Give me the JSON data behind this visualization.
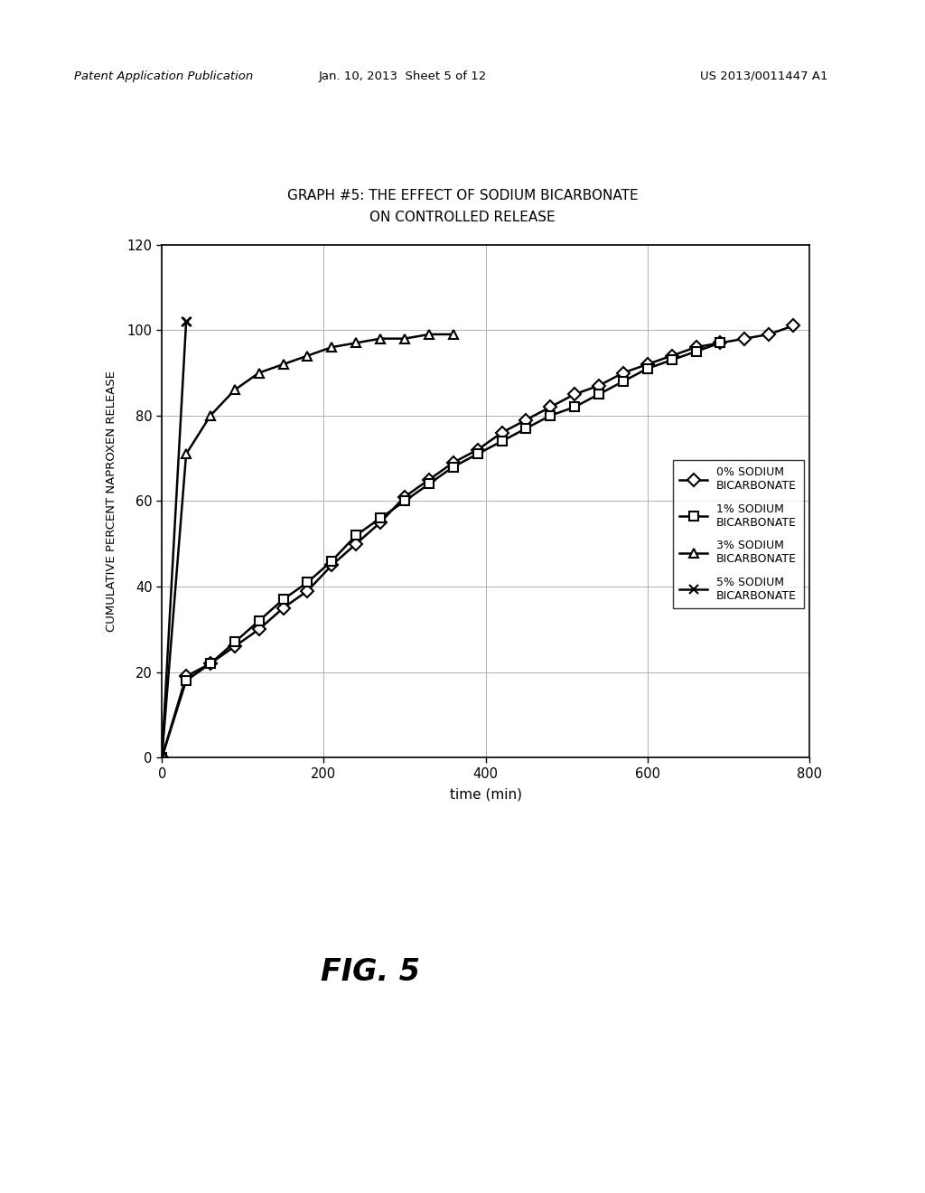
{
  "title_line1": "GRAPH #5: THE EFFECT OF SODIUM BICARBONATE",
  "title_line2": "ON CONTROLLED RELEASE",
  "xlabel": "time (min)",
  "ylabel": "CUMULATIVE PERCENT NAPROXEN RELEASE",
  "xlim": [
    0,
    800
  ],
  "ylim": [
    0,
    120
  ],
  "xticks": [
    0,
    200,
    400,
    600,
    800
  ],
  "yticks": [
    0,
    20,
    40,
    60,
    80,
    100,
    120
  ],
  "header_left": "Patent Application Publication",
  "header_center": "Jan. 10, 2013  Sheet 5 of 12",
  "header_right": "US 2013/0011447 A1",
  "fig_label": "FIG. 5",
  "series": {
    "0pct": {
      "label": "0% SODIUM\nBICARBONATE",
      "marker": "D",
      "x": [
        0,
        30,
        60,
        90,
        120,
        150,
        180,
        210,
        240,
        270,
        300,
        330,
        360,
        390,
        420,
        450,
        480,
        510,
        540,
        570,
        600,
        630,
        660,
        690,
        720,
        750,
        780
      ],
      "y": [
        0,
        19,
        22,
        26,
        30,
        35,
        39,
        45,
        50,
        55,
        61,
        65,
        69,
        72,
        76,
        79,
        82,
        85,
        87,
        90,
        92,
        94,
        96,
        97,
        98,
        99,
        101
      ]
    },
    "1pct": {
      "label": "1% SODIUM\nBICARBONATE",
      "marker": "s",
      "x": [
        0,
        30,
        60,
        90,
        120,
        150,
        180,
        210,
        240,
        270,
        300,
        330,
        360,
        390,
        420,
        450,
        480,
        510,
        540,
        570,
        600,
        630,
        660,
        690
      ],
      "y": [
        0,
        18,
        22,
        27,
        32,
        37,
        41,
        46,
        52,
        56,
        60,
        64,
        68,
        71,
        74,
        77,
        80,
        82,
        85,
        88,
        91,
        93,
        95,
        97
      ]
    },
    "3pct": {
      "label": "3% SODIUM\nBICARBONATE",
      "marker": "^",
      "x": [
        0,
        30,
        60,
        90,
        120,
        150,
        180,
        210,
        240,
        270,
        300,
        330,
        360
      ],
      "y": [
        0,
        71,
        80,
        86,
        90,
        92,
        94,
        96,
        97,
        98,
        98,
        99,
        99
      ]
    },
    "5pct": {
      "label": "5% SODIUM\nBICARBONATE",
      "marker": "x",
      "x": [
        0,
        30,
        31
      ],
      "y": [
        0,
        102,
        102
      ]
    }
  },
  "background_color": "#ffffff",
  "grid_color": "#b0b0b0",
  "line_color": "#000000",
  "marker_size": 7,
  "linewidth": 1.8
}
